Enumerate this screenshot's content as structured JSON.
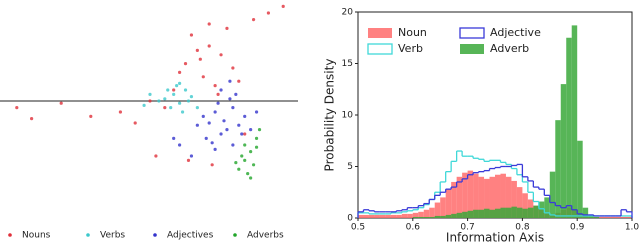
{
  "chart_data": [
    {
      "type": "scatter",
      "series": [
        {
          "name": "Nouns",
          "color": "#e0303a",
          "x": [
            0.62,
            0.66,
            0.7,
            0.74,
            0.78,
            0.68,
            0.72,
            0.6,
            0.64,
            0.76,
            0.8,
            0.58,
            0.7,
            0.73,
            0.67,
            0.85,
            0.9,
            0.95,
            0.55,
            0.5,
            0.4,
            0.3,
            0.2,
            0.1,
            0.05,
            0.45,
            0.52,
            0.63,
            0.71,
            0.82
          ],
          "y": [
            0.72,
            0.78,
            0.8,
            0.76,
            0.7,
            0.66,
            0.62,
            0.68,
            0.85,
            0.88,
            0.64,
            0.6,
            0.9,
            0.58,
            0.74,
            0.92,
            0.95,
            0.98,
            0.52,
            0.55,
            0.5,
            0.48,
            0.54,
            0.47,
            0.52,
            0.45,
            0.3,
            0.28,
            0.26,
            0.4
          ]
        },
        {
          "name": "Verbs",
          "color": "#3cc8cc",
          "x": [
            0.55,
            0.58,
            0.6,
            0.62,
            0.57,
            0.53,
            0.59,
            0.61,
            0.64,
            0.5,
            0.48,
            0.66,
            0.56,
            0.63,
            0.6
          ],
          "y": [
            0.56,
            0.58,
            0.54,
            0.6,
            0.52,
            0.55,
            0.62,
            0.5,
            0.57,
            0.58,
            0.53,
            0.52,
            0.6,
            0.55,
            0.63
          ]
        },
        {
          "name": "Adjectives",
          "color": "#3333cc",
          "x": [
            0.72,
            0.75,
            0.78,
            0.8,
            0.74,
            0.77,
            0.7,
            0.82,
            0.69,
            0.73,
            0.76,
            0.79,
            0.71,
            0.68,
            0.84,
            0.81,
            0.66,
            0.74,
            0.78,
            0.72,
            0.6,
            0.64,
            0.86,
            0.58,
            0.77
          ],
          "y": [
            0.5,
            0.46,
            0.52,
            0.44,
            0.4,
            0.56,
            0.45,
            0.48,
            0.38,
            0.54,
            0.42,
            0.58,
            0.36,
            0.48,
            0.42,
            0.4,
            0.44,
            0.6,
            0.35,
            0.33,
            0.35,
            0.3,
            0.5,
            0.38,
            0.64
          ]
        },
        {
          "name": "Adverbs",
          "color": "#22a52a",
          "x": [
            0.8,
            0.82,
            0.84,
            0.86,
            0.83,
            0.81,
            0.85,
            0.87,
            0.82,
            0.84,
            0.79,
            0.86
          ],
          "y": [
            0.24,
            0.28,
            0.32,
            0.38,
            0.22,
            0.3,
            0.26,
            0.42,
            0.35,
            0.2,
            0.27,
            0.34
          ]
        }
      ]
    },
    {
      "type": "histogram",
      "x_label": "Information Axis",
      "y_label": "Probability Density",
      "bins": [
        0.5,
        0.51,
        0.52,
        0.53,
        0.54,
        0.55,
        0.56,
        0.57,
        0.58,
        0.59,
        0.6,
        0.61,
        0.62,
        0.63,
        0.64,
        0.65,
        0.66,
        0.67,
        0.68,
        0.69,
        0.7,
        0.71,
        0.72,
        0.73,
        0.74,
        0.75,
        0.76,
        0.77,
        0.78,
        0.79,
        0.8,
        0.81,
        0.82,
        0.83,
        0.84,
        0.85,
        0.86,
        0.87,
        0.88,
        0.89,
        0.9,
        0.91,
        0.92,
        0.93,
        0.94,
        0.95,
        0.96,
        0.97,
        0.98,
        0.99,
        1.0
      ],
      "series": [
        {
          "name": "Noun",
          "color": "#ff6b6b",
          "histtype": "stepfilled",
          "values": [
            0.3,
            0.3,
            0.3,
            0.3,
            0.3,
            0.3,
            0.3,
            0.3,
            0.4,
            0.4,
            0.5,
            0.6,
            0.8,
            1.0,
            1.5,
            2.0,
            2.8,
            3.5,
            4.0,
            4.4,
            4.6,
            4.3,
            4.0,
            3.8,
            4.0,
            4.2,
            4.3,
            4.0,
            3.6,
            3.0,
            2.4,
            1.8,
            1.2,
            0.8,
            0.5,
            0.4,
            0.5,
            0.8,
            1.0,
            0.8,
            0.4,
            0.2,
            0.1,
            0.1,
            0.1,
            0.1,
            0.1,
            0.1,
            0.1,
            0.1
          ]
        },
        {
          "name": "Verb",
          "color": "#40d8d8",
          "histtype": "step",
          "values": [
            0.5,
            0.5,
            0.4,
            0.4,
            0.4,
            0.4,
            0.5,
            0.5,
            0.6,
            0.7,
            0.8,
            1.0,
            1.3,
            1.8,
            2.5,
            3.5,
            4.5,
            5.5,
            6.5,
            6.0,
            6.0,
            5.8,
            5.7,
            5.5,
            5.6,
            5.6,
            5.4,
            5.2,
            4.8,
            4.2,
            3.5,
            2.5,
            1.6,
            0.9,
            0.5,
            0.3,
            0.2,
            0.2,
            0.2,
            0.2,
            0.2,
            0.2,
            0.2,
            0.2,
            0.2,
            0.2,
            0.2,
            0.2,
            0.2,
            0.2
          ]
        },
        {
          "name": "Adjective",
          "color": "#3a3ad8",
          "histtype": "step",
          "values": [
            0.6,
            0.8,
            0.7,
            0.6,
            0.6,
            0.6,
            0.6,
            0.7,
            0.8,
            1.0,
            1.0,
            1.2,
            1.4,
            1.8,
            2.2,
            2.5,
            2.8,
            3.0,
            3.5,
            3.8,
            4.2,
            4.4,
            4.5,
            4.6,
            4.8,
            4.9,
            5.0,
            5.0,
            5.1,
            5.2,
            4.0,
            3.6,
            3.0,
            2.8,
            2.2,
            1.5,
            1.2,
            1.0,
            1.2,
            0.8,
            0.4,
            0.3,
            0.3,
            0.2,
            0.2,
            0.2,
            0.2,
            0.2,
            0.8,
            0.6
          ]
        },
        {
          "name": "Adverb",
          "color": "#3aa83a",
          "histtype": "stepfilled",
          "values": [
            0,
            0,
            0,
            0,
            0,
            0,
            0,
            0,
            0,
            0,
            0.1,
            0.1,
            0.1,
            0.1,
            0.2,
            0.2,
            0.3,
            0.4,
            0.5,
            0.6,
            0.7,
            0.8,
            0.8,
            0.9,
            0.8,
            0.9,
            1.0,
            1.0,
            1.1,
            1.0,
            0.9,
            1.0,
            1.2,
            1.6,
            2.0,
            4.5,
            9.5,
            13.0,
            17.5,
            18.7,
            7.5,
            1.0,
            0.3,
            0.1,
            0,
            0,
            0,
            0,
            0,
            0
          ]
        }
      ],
      "xlim": [
        0.5,
        1.0
      ],
      "xticks": [
        0.5,
        0.6,
        0.7,
        0.8,
        0.9,
        {
          "value": 1.0,
          "label": "1.0"
        }
      ],
      "ylim": [
        0,
        20
      ],
      "yticks": [
        0,
        5,
        10,
        15,
        20
      ]
    }
  ]
}
